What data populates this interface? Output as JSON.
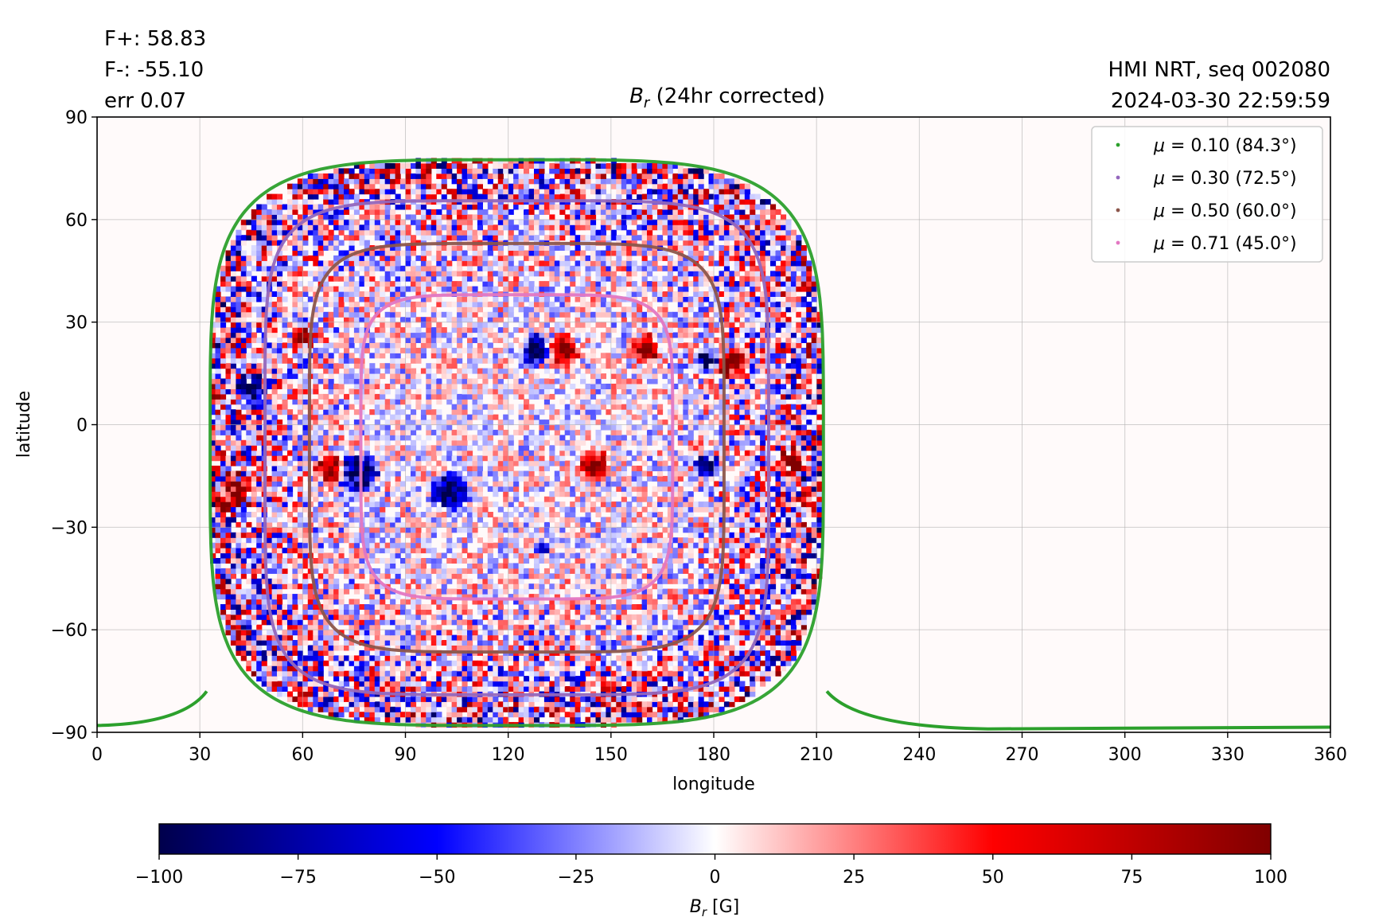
{
  "stats": {
    "flux_pos": "F+: 58.83",
    "flux_neg": "F-: -55.10",
    "err": "err 0.07"
  },
  "source": {
    "instrument": "HMI NRT, seq 002080",
    "datetime": "2024-03-30 22:59:59"
  },
  "chart_data": {
    "type": "heatmap",
    "title": {
      "symbol": "B",
      "subscript": "r",
      "suffix": " (24hr corrected)"
    },
    "xlabel": "longitude",
    "ylabel": "latitude",
    "xlim": [
      0,
      360
    ],
    "ylim": [
      -90,
      90
    ],
    "xticks": [
      0,
      30,
      60,
      90,
      120,
      150,
      180,
      210,
      240,
      270,
      300,
      330,
      360
    ],
    "yticks": [
      -90,
      -60,
      -30,
      0,
      30,
      60,
      90
    ],
    "grid": true,
    "legend_position": "top-right",
    "disk_center": {
      "lon": 122,
      "lat": -5
    },
    "contours": [
      {
        "label_mu": "0.10",
        "label_angle": "(84.3°)",
        "color": "#2ca02c",
        "lat_max": 77.5,
        "lat_min": -88,
        "lon_left": 33,
        "lon_right": 212
      },
      {
        "label_mu": "0.30",
        "label_angle": "(72.5°)",
        "color": "#9467bd",
        "lat_max": 65.5,
        "lat_min": -79,
        "lon_left": 49,
        "lon_right": 196
      },
      {
        "label_mu": "0.50",
        "label_angle": "(60.0°)",
        "color": "#8c564b",
        "lat_max": 53,
        "lat_min": -66.5,
        "lon_left": 62,
        "lon_right": 183
      },
      {
        "label_mu": "0.71",
        "label_angle": "(45.0°)",
        "color": "#e377c2",
        "lat_max": 38,
        "lat_min": -51,
        "lon_left": 77,
        "lon_right": 168
      }
    ],
    "active_regions": [
      {
        "lon": 136,
        "lat": 22,
        "sign": 1,
        "size": 4,
        "strength": 95
      },
      {
        "lon": 128,
        "lat": 22,
        "sign": -1,
        "size": 4,
        "strength": 95
      },
      {
        "lon": 160,
        "lat": 22,
        "sign": 1,
        "size": 4,
        "strength": 90
      },
      {
        "lon": 178,
        "lat": 19,
        "sign": -1,
        "size": 3,
        "strength": 95
      },
      {
        "lon": 185,
        "lat": 18,
        "sign": 1,
        "size": 4,
        "strength": 90
      },
      {
        "lon": 60,
        "lat": 26,
        "sign": 1,
        "size": 3,
        "strength": 90
      },
      {
        "lon": 45,
        "lat": 10,
        "sign": -1,
        "size": 4,
        "strength": 95
      },
      {
        "lon": 40,
        "lat": -20,
        "sign": 1,
        "size": 5,
        "strength": 90
      },
      {
        "lon": 68,
        "lat": -13,
        "sign": 1,
        "size": 4,
        "strength": 95
      },
      {
        "lon": 76,
        "lat": -14,
        "sign": -1,
        "size": 5,
        "strength": 100
      },
      {
        "lon": 103,
        "lat": -20,
        "sign": -1,
        "size": 5,
        "strength": 90
      },
      {
        "lon": 145,
        "lat": -12,
        "sign": 1,
        "size": 4,
        "strength": 85
      },
      {
        "lon": 178,
        "lat": -12,
        "sign": -1,
        "size": 3,
        "strength": 90
      },
      {
        "lon": 203,
        "lat": -11,
        "sign": 1,
        "size": 4,
        "strength": 100
      },
      {
        "lon": 207,
        "lat": -15,
        "sign": -1,
        "size": 2,
        "strength": 100
      },
      {
        "lon": 130,
        "lat": -36,
        "sign": -1,
        "size": 2,
        "strength": 80
      }
    ],
    "colorbar": {
      "label": {
        "symbol": "B",
        "subscript": "r",
        "unit": " [G]"
      },
      "range": [
        -100,
        100
      ],
      "ticks": [
        "−100",
        "−75",
        "−50",
        "−25",
        "0",
        "25",
        "50",
        "75",
        "100"
      ],
      "colormap": "seismic",
      "colors": [
        "#00004c",
        "#0000ff",
        "#ffffff",
        "#ff0000",
        "#800000"
      ]
    }
  }
}
